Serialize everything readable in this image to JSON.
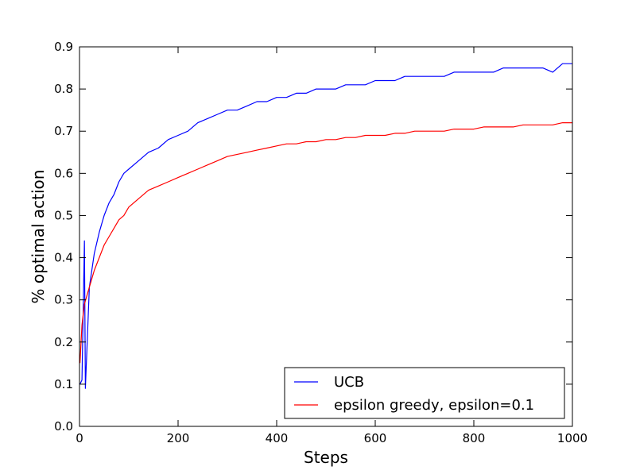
{
  "chart_data": {
    "type": "line",
    "xlabel": "Steps",
    "ylabel": "% optimal action",
    "xlim": [
      0,
      1000
    ],
    "ylim": [
      0.0,
      0.9
    ],
    "xticks": [
      "0",
      "200",
      "400",
      "600",
      "800",
      "1000"
    ],
    "yticks": [
      "0.0",
      "0.1",
      "0.2",
      "0.3",
      "0.4",
      "0.5",
      "0.6",
      "0.7",
      "0.8",
      "0.9"
    ],
    "grid": false,
    "legend": "bottom-right",
    "series": [
      {
        "name": "UCB",
        "color": "#0000ff",
        "x": [
          1,
          5,
          10,
          12,
          20,
          30,
          40,
          50,
          60,
          70,
          80,
          90,
          100,
          120,
          140,
          160,
          180,
          200,
          220,
          240,
          260,
          280,
          300,
          320,
          340,
          360,
          380,
          400,
          420,
          440,
          460,
          480,
          500,
          520,
          540,
          560,
          580,
          600,
          620,
          640,
          660,
          680,
          700,
          720,
          740,
          760,
          780,
          800,
          820,
          840,
          860,
          880,
          900,
          920,
          940,
          960,
          980,
          1000
        ],
        "y": [
          0.1,
          0.11,
          0.44,
          0.09,
          0.33,
          0.41,
          0.46,
          0.5,
          0.53,
          0.55,
          0.58,
          0.6,
          0.61,
          0.63,
          0.65,
          0.66,
          0.68,
          0.69,
          0.7,
          0.72,
          0.73,
          0.74,
          0.75,
          0.75,
          0.76,
          0.77,
          0.77,
          0.78,
          0.78,
          0.79,
          0.79,
          0.8,
          0.8,
          0.8,
          0.81,
          0.81,
          0.81,
          0.82,
          0.82,
          0.82,
          0.83,
          0.83,
          0.83,
          0.83,
          0.83,
          0.84,
          0.84,
          0.84,
          0.84,
          0.84,
          0.85,
          0.85,
          0.85,
          0.85,
          0.85,
          0.84,
          0.86,
          0.86
        ]
      },
      {
        "name": "epsilon greedy, epsilon=0.1",
        "color": "#ff0000",
        "x": [
          1,
          5,
          10,
          20,
          30,
          40,
          50,
          60,
          70,
          80,
          90,
          100,
          120,
          140,
          160,
          180,
          200,
          220,
          240,
          260,
          280,
          300,
          320,
          340,
          360,
          380,
          400,
          420,
          440,
          460,
          480,
          500,
          520,
          540,
          560,
          580,
          600,
          620,
          640,
          660,
          680,
          700,
          720,
          740,
          760,
          780,
          800,
          820,
          840,
          860,
          880,
          900,
          920,
          940,
          960,
          980,
          1000
        ],
        "y": [
          0.15,
          0.24,
          0.29,
          0.33,
          0.37,
          0.4,
          0.43,
          0.45,
          0.47,
          0.49,
          0.5,
          0.52,
          0.54,
          0.56,
          0.57,
          0.58,
          0.59,
          0.6,
          0.61,
          0.62,
          0.63,
          0.64,
          0.645,
          0.65,
          0.655,
          0.66,
          0.665,
          0.67,
          0.67,
          0.675,
          0.675,
          0.68,
          0.68,
          0.685,
          0.685,
          0.69,
          0.69,
          0.69,
          0.695,
          0.695,
          0.7,
          0.7,
          0.7,
          0.7,
          0.705,
          0.705,
          0.705,
          0.71,
          0.71,
          0.71,
          0.71,
          0.715,
          0.715,
          0.715,
          0.715,
          0.72,
          0.72
        ]
      }
    ]
  }
}
